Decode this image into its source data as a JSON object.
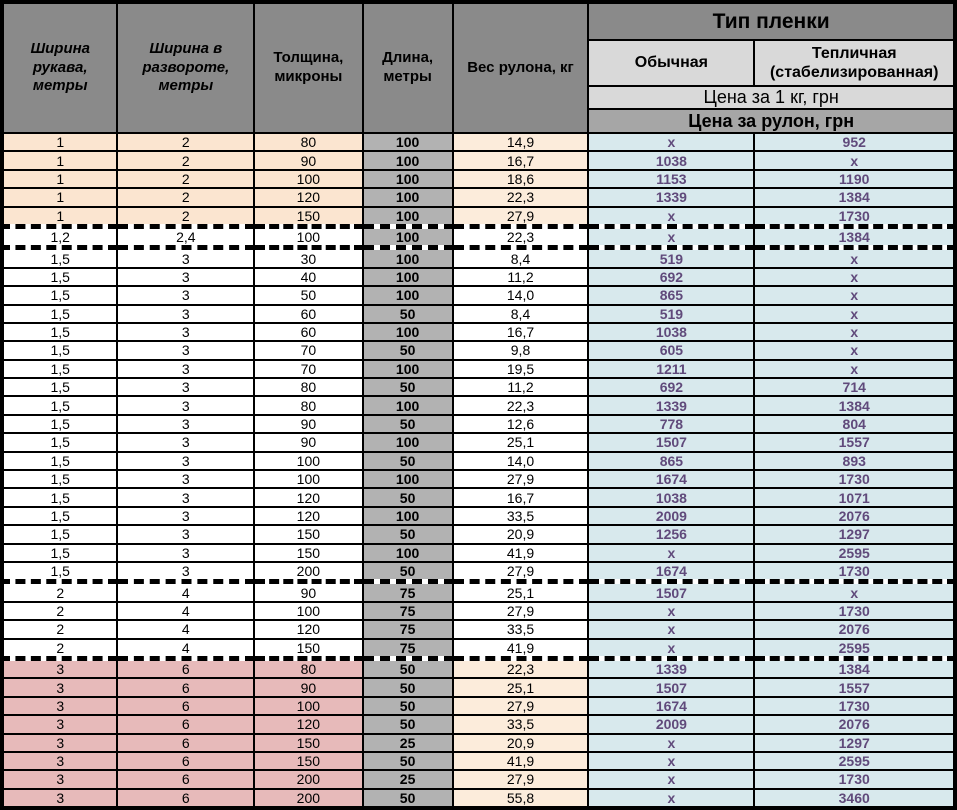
{
  "table_title": "Тип пленки",
  "headers": {
    "sleeve_width": "Ширина рукава, метры",
    "unfolded_width": "Ширина в развороте, метры",
    "thickness": "Толщина, микроны",
    "length": "Длина, метры",
    "roll_weight": "Вес рулона, кг",
    "film_type": "Тип пленки",
    "regular": "Обычная",
    "greenhouse": "Тепличная (стабелизированная)",
    "price_per_kg": "Цена за 1 кг, грн",
    "price_per_roll": "Цена за рулон, грн"
  },
  "columns_order": [
    "sleeve_width",
    "unfolded_width",
    "thickness_microns",
    "length_m",
    "roll_weight_kg",
    "price_roll_regular",
    "price_roll_greenhouse"
  ],
  "rows": [
    {
      "v": [
        "1",
        "2",
        "80",
        "100",
        "14,9",
        "x",
        "952"
      ],
      "g": "g1",
      "d": false
    },
    {
      "v": [
        "1",
        "2",
        "90",
        "100",
        "16,7",
        "1038",
        "x"
      ],
      "g": "g1",
      "d": false
    },
    {
      "v": [
        "1",
        "2",
        "100",
        "100",
        "18,6",
        "1153",
        "1190"
      ],
      "g": "g1",
      "d": false
    },
    {
      "v": [
        "1",
        "2",
        "120",
        "100",
        "22,3",
        "1339",
        "1384"
      ],
      "g": "g1",
      "d": false
    },
    {
      "v": [
        "1",
        "2",
        "150",
        "100",
        "27,9",
        "x",
        "1730"
      ],
      "g": "g1",
      "d": true
    },
    {
      "v": [
        "1,2",
        "2,4",
        "100",
        "100",
        "22,3",
        "x",
        "1384"
      ],
      "g": "g12",
      "d": true
    },
    {
      "v": [
        "1,5",
        "3",
        "30",
        "100",
        "8,4",
        "519",
        "x"
      ],
      "g": "g15",
      "d": false
    },
    {
      "v": [
        "1,5",
        "3",
        "40",
        "100",
        "11,2",
        "692",
        "x"
      ],
      "g": "g15",
      "d": false
    },
    {
      "v": [
        "1,5",
        "3",
        "50",
        "100",
        "14,0",
        "865",
        "x"
      ],
      "g": "g15",
      "d": false
    },
    {
      "v": [
        "1,5",
        "3",
        "60",
        "50",
        "8,4",
        "519",
        "x"
      ],
      "g": "g15",
      "d": false
    },
    {
      "v": [
        "1,5",
        "3",
        "60",
        "100",
        "16,7",
        "1038",
        "x"
      ],
      "g": "g15",
      "d": false
    },
    {
      "v": [
        "1,5",
        "3",
        "70",
        "50",
        "9,8",
        "605",
        "x"
      ],
      "g": "g15",
      "d": false
    },
    {
      "v": [
        "1,5",
        "3",
        "70",
        "100",
        "19,5",
        "1211",
        "x"
      ],
      "g": "g15",
      "d": false
    },
    {
      "v": [
        "1,5",
        "3",
        "80",
        "50",
        "11,2",
        "692",
        "714"
      ],
      "g": "g15",
      "d": false
    },
    {
      "v": [
        "1,5",
        "3",
        "80",
        "100",
        "22,3",
        "1339",
        "1384"
      ],
      "g": "g15",
      "d": false
    },
    {
      "v": [
        "1,5",
        "3",
        "90",
        "50",
        "12,6",
        "778",
        "804"
      ],
      "g": "g15",
      "d": false
    },
    {
      "v": [
        "1,5",
        "3",
        "90",
        "100",
        "25,1",
        "1507",
        "1557"
      ],
      "g": "g15",
      "d": false
    },
    {
      "v": [
        "1,5",
        "3",
        "100",
        "50",
        "14,0",
        "865",
        "893"
      ],
      "g": "g15",
      "d": false
    },
    {
      "v": [
        "1,5",
        "3",
        "100",
        "100",
        "27,9",
        "1674",
        "1730"
      ],
      "g": "g15",
      "d": false
    },
    {
      "v": [
        "1,5",
        "3",
        "120",
        "50",
        "16,7",
        "1038",
        "1071"
      ],
      "g": "g15",
      "d": false
    },
    {
      "v": [
        "1,5",
        "3",
        "120",
        "100",
        "33,5",
        "2009",
        "2076"
      ],
      "g": "g15",
      "d": false
    },
    {
      "v": [
        "1,5",
        "3",
        "150",
        "50",
        "20,9",
        "1256",
        "1297"
      ],
      "g": "g15",
      "d": false
    },
    {
      "v": [
        "1,5",
        "3",
        "150",
        "100",
        "41,9",
        "x",
        "2595"
      ],
      "g": "g15",
      "d": false
    },
    {
      "v": [
        "1,5",
        "3",
        "200",
        "50",
        "27,9",
        "1674",
        "1730"
      ],
      "g": "g15",
      "d": true
    },
    {
      "v": [
        "2",
        "4",
        "90",
        "75",
        "25,1",
        "1507",
        "x"
      ],
      "g": "g2",
      "d": false
    },
    {
      "v": [
        "2",
        "4",
        "100",
        "75",
        "27,9",
        "x",
        "1730"
      ],
      "g": "g2",
      "d": false
    },
    {
      "v": [
        "2",
        "4",
        "120",
        "75",
        "33,5",
        "x",
        "2076"
      ],
      "g": "g2",
      "d": false
    },
    {
      "v": [
        "2",
        "4",
        "150",
        "75",
        "41,9",
        "x",
        "2595"
      ],
      "g": "g2",
      "d": true
    },
    {
      "v": [
        "3",
        "6",
        "80",
        "50",
        "22,3",
        "1339",
        "1384"
      ],
      "g": "g3",
      "d": false
    },
    {
      "v": [
        "3",
        "6",
        "90",
        "50",
        "25,1",
        "1507",
        "1557"
      ],
      "g": "g3",
      "d": false
    },
    {
      "v": [
        "3",
        "6",
        "100",
        "50",
        "27,9",
        "1674",
        "1730"
      ],
      "g": "g3",
      "d": false
    },
    {
      "v": [
        "3",
        "6",
        "120",
        "50",
        "33,5",
        "2009",
        "2076"
      ],
      "g": "g3",
      "d": false
    },
    {
      "v": [
        "3",
        "6",
        "150",
        "25",
        "20,9",
        "x",
        "1297"
      ],
      "g": "g3",
      "d": false
    },
    {
      "v": [
        "3",
        "6",
        "150",
        "50",
        "41,9",
        "x",
        "2595"
      ],
      "g": "g3",
      "d": false
    },
    {
      "v": [
        "3",
        "6",
        "200",
        "25",
        "27,9",
        "x",
        "1730"
      ],
      "g": "g3",
      "d": false
    },
    {
      "v": [
        "3",
        "6",
        "200",
        "50",
        "55,8",
        "x",
        "3460"
      ],
      "g": "g3",
      "d": false
    }
  ],
  "colors": {
    "header_gray": "#8a8a8a",
    "subheader_light_gray": "#d9d9d9",
    "roll_price_gray": "#a6a6a6",
    "length_col_gray": "#b2b2b2",
    "group_1m_peach": "#fbe5d0",
    "weight_col_peach": "#fcecdb",
    "group_3m_pink": "#e7baba",
    "price_blue": "#d8e9ed",
    "price_text_purple": "#604a7b",
    "border_black": "#000000"
  }
}
